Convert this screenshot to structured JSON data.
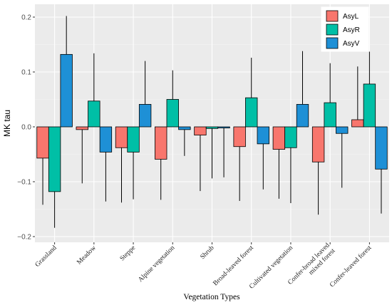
{
  "chart_data": {
    "type": "bar",
    "title": "",
    "xlabel": "Vegetation Types",
    "ylabel": "MK tau",
    "ylim": [
      -0.2,
      0.22
    ],
    "yticks": [
      0.2,
      0.1,
      0.0,
      -0.1,
      -0.2
    ],
    "ytick_labels": [
      "0.2",
      "0.1",
      "0.0",
      "−0.1",
      "−0.2"
    ],
    "grid": true,
    "legend_position": "top-right",
    "categories": [
      "Grassland",
      "Meadow",
      "Steppe",
      "Alpine vegetation",
      "Shrub",
      "Broad-leaved forest",
      "Cultivated vegetation",
      "Confer-broad leaved\nmixed forest",
      "Confer-leaved forest"
    ],
    "series": [
      {
        "name": "AsyL",
        "color": "#F8766D",
        "values": [
          -0.057,
          -0.005,
          -0.038,
          -0.059,
          -0.015,
          -0.036,
          -0.041,
          -0.064,
          0.013
        ],
        "error_end": [
          -0.142,
          -0.103,
          -0.138,
          -0.133,
          -0.117,
          -0.135,
          -0.131,
          -0.16,
          0.11
        ]
      },
      {
        "name": "AsyR",
        "color": "#00BFA6",
        "values": [
          -0.118,
          0.047,
          -0.046,
          0.05,
          -0.003,
          0.053,
          -0.038,
          0.044,
          0.078
        ],
        "error_end": [
          -0.184,
          0.134,
          -0.132,
          0.103,
          -0.094,
          0.126,
          -0.139,
          0.116,
          0.137
        ]
      },
      {
        "name": "AsyV",
        "color": "#1E90D6",
        "values": [
          0.132,
          -0.046,
          0.041,
          -0.005,
          -0.002,
          -0.031,
          0.041,
          -0.012,
          -0.077
        ],
        "error_end": [
          0.202,
          -0.136,
          0.12,
          -0.053,
          -0.092,
          -0.114,
          0.138,
          -0.111,
          -0.158
        ]
      }
    ]
  }
}
